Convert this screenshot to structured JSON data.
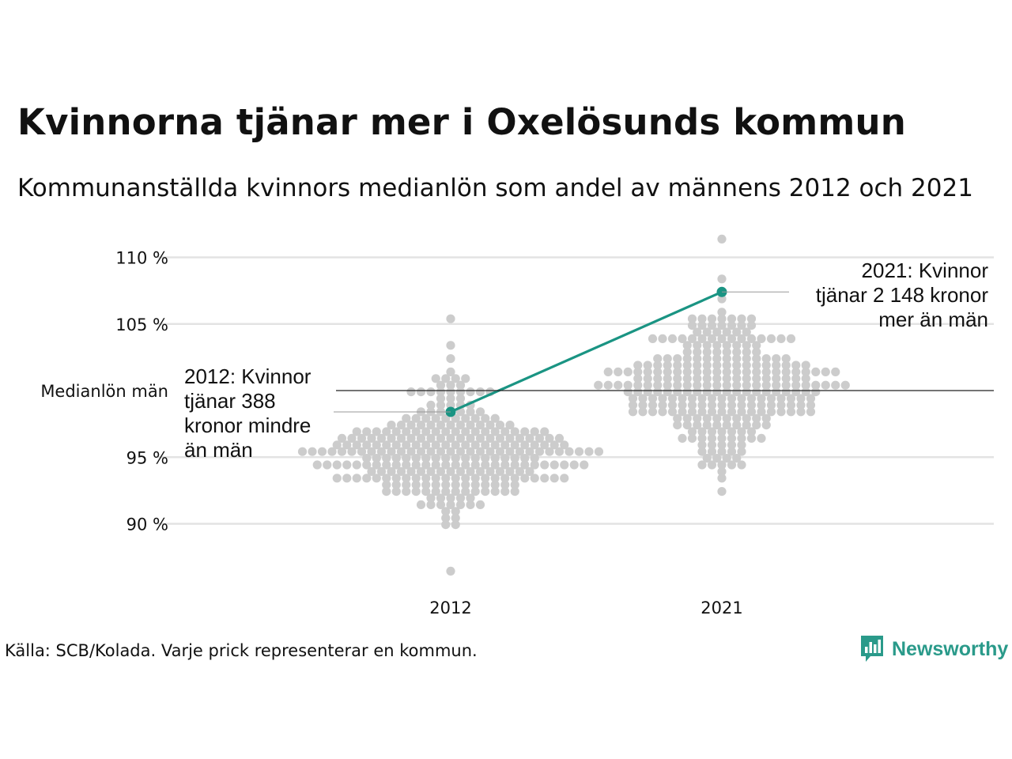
{
  "header": {
    "title": "Kvinnorna tjänar mer i Oxelösunds kommun",
    "subtitle": "Kommunanställda kvinnors medianlön som andel av männens 2012 och 2021"
  },
  "footer": {
    "source": "Källa: SCB/Kolada. Varje prick representerar en kommun.",
    "brand": "Newsworthy"
  },
  "colors": {
    "highlight": "#1a9483",
    "dots": "#cccccc",
    "gridline": "#e3e3e3",
    "reference_line": "#222222"
  },
  "chart_data": {
    "type": "scatter",
    "subtype": "beeswarm",
    "categories": [
      "2012",
      "2021"
    ],
    "y_unit": "%",
    "ylim": [
      86,
      111.5
    ],
    "y_ticks": [
      {
        "value": 90,
        "label": "90 %"
      },
      {
        "value": 95,
        "label": "95 %"
      },
      {
        "value": 100,
        "label": "Medianlön män"
      },
      {
        "value": 105,
        "label": "105 %"
      },
      {
        "value": 110,
        "label": "110 %"
      }
    ],
    "reference_line": {
      "value": 100,
      "label": "Medianlön män"
    },
    "grid": true,
    "distributions": [
      {
        "category": "2012",
        "min": 86.5,
        "q1": 93.6,
        "median": 95.3,
        "q3": 97.0,
        "max": 105.2
      },
      {
        "category": "2021",
        "min": 92.6,
        "q1": 98.9,
        "median": 100.6,
        "q3": 102.4,
        "max": 111.3
      }
    ],
    "highlight": {
      "name": "Oxelösund",
      "points": [
        {
          "x": "2012",
          "y": 98.4,
          "annotation": [
            "2012: Kvinnor",
            "tjänar 388",
            "kronor mindre",
            "än män"
          ]
        },
        {
          "x": "2021",
          "y": 107.4,
          "annotation": [
            "2021: Kvinnor",
            "tjänar 2 148 kronor",
            "mer än män"
          ]
        }
      ]
    }
  }
}
